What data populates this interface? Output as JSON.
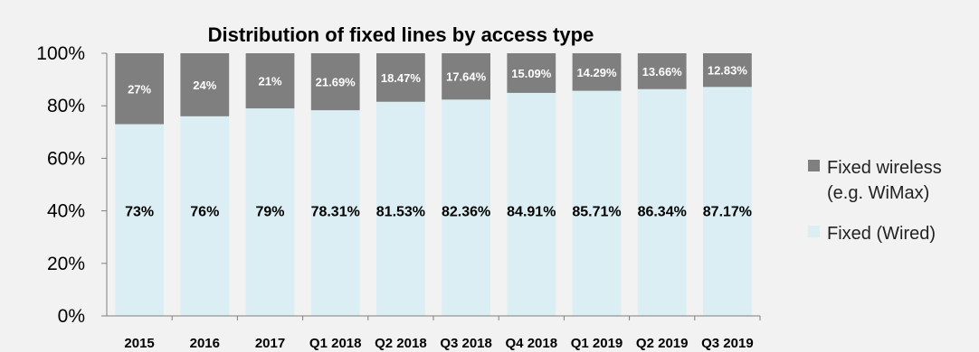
{
  "chart_data": {
    "type": "bar",
    "stacked": true,
    "title": "Distribution of fixed lines by access type",
    "categories": [
      "2015",
      "2016",
      "2017",
      "Q1 2018",
      "Q2 2018",
      "Q3 2018",
      "Q4 2018",
      "Q1 2019",
      "Q2 2019",
      "Q3 2019"
    ],
    "series": [
      {
        "name": "Fixed (Wired)",
        "values": [
          73,
          76,
          79,
          78.31,
          81.53,
          82.36,
          84.91,
          85.71,
          86.34,
          87.17
        ],
        "labels": [
          "73%",
          "76%",
          "79%",
          "78.31%",
          "81.53%",
          "82.36%",
          "84.91%",
          "85.71%",
          "86.34%",
          "87.17%"
        ],
        "color": "#daeef3"
      },
      {
        "name": "Fixed wireless (e.g. WiMax)",
        "values": [
          27,
          24,
          21,
          21.69,
          18.47,
          17.64,
          15.09,
          14.29,
          13.66,
          12.83
        ],
        "labels": [
          "27%",
          "24%",
          "21%",
          "21.69%",
          "18.47%",
          "17.64%",
          "15.09%",
          "14.29%",
          "13.66%",
          "12.83%"
        ],
        "color": "#7f7f7f"
      }
    ],
    "yticks": [
      "0%",
      "20%",
      "40%",
      "60%",
      "80%",
      "100%"
    ],
    "ylim": [
      0,
      100
    ],
    "grid": false,
    "legend": {
      "position": "right",
      "entries": [
        {
          "lines": [
            "Fixed wireless",
            "(e.g. WiMax)"
          ],
          "color": "#7f7f7f"
        },
        {
          "lines": [
            "Fixed (Wired)"
          ],
          "color": "#daeef3"
        }
      ]
    }
  }
}
